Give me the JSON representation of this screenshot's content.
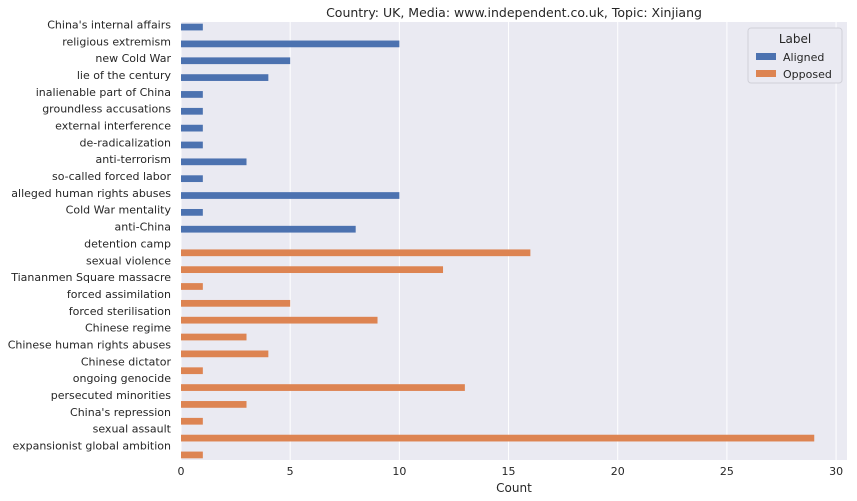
{
  "chart_data": {
    "type": "bar",
    "orientation": "horizontal",
    "title": "Country: UK, Media: www.independent.co.uk, Topic: Xinjiang",
    "xlabel": "Count",
    "ylabel": "",
    "xlim": [
      0,
      30.5
    ],
    "xticks": [
      0,
      5,
      10,
      15,
      20,
      25,
      30
    ],
    "grid": true,
    "legend": {
      "title": "Label",
      "position": "top-right"
    },
    "categories": [
      "China's internal affairs",
      "religious extremism",
      "new Cold War",
      "lie of the century",
      "inalienable part of China",
      "groundless accusations",
      "external interference",
      "de-radicalization",
      "anti-terrorism",
      "so-called forced labor",
      "alleged human rights abuses",
      "Cold War mentality",
      "anti-China",
      "detention camp",
      "sexual violence",
      "Tiananmen Square massacre",
      "forced assimilation",
      "forced sterilisation",
      "Chinese regime",
      "Chinese human rights abuses",
      "Chinese dictator",
      "ongoing genocide",
      "persecuted minorities",
      "China's repression",
      "sexual assault",
      "expansionist global ambition"
    ],
    "series": [
      {
        "name": "Aligned",
        "color": "#4c72b0",
        "values": [
          1,
          10,
          5,
          4,
          1,
          1,
          1,
          1,
          3,
          1,
          10,
          1,
          8,
          0,
          0,
          0,
          0,
          0,
          0,
          0,
          0,
          0,
          0,
          0,
          0,
          0
        ]
      },
      {
        "name": "Opposed",
        "color": "#dd8452",
        "values": [
          0,
          0,
          0,
          0,
          0,
          0,
          0,
          0,
          0,
          0,
          0,
          0,
          0,
          16,
          12,
          1,
          5,
          9,
          3,
          4,
          1,
          13,
          3,
          1,
          29,
          1
        ]
      }
    ]
  }
}
